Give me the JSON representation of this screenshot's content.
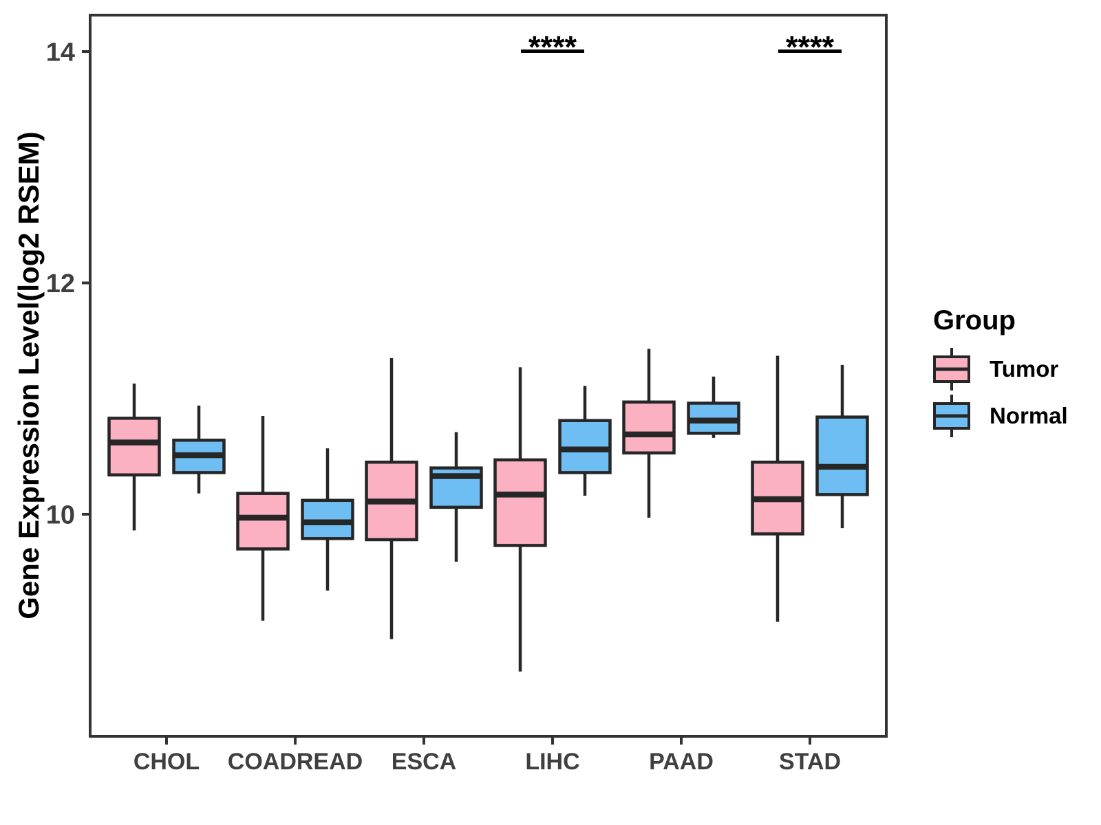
{
  "chart_data": {
    "type": "boxplot",
    "title": "",
    "xlabel": "",
    "ylabel": "Gene Expression Level(log2 RSEM)",
    "categories": [
      "CHOL",
      "COADREAD",
      "ESCA",
      "LIHC",
      "PAAD",
      "STAD"
    ],
    "groups": [
      "Tumor",
      "Normal"
    ],
    "ylim": [
      8.08,
      14.315
    ],
    "yticks": [
      10,
      12,
      14
    ],
    "grid": false,
    "legend_position": "right",
    "series": [
      {
        "name": "Tumor",
        "color": "#FBB1C2",
        "boxes": [
          {
            "category": "CHOL",
            "low": 9.86,
            "q1": 10.34,
            "median": 10.62,
            "q3": 10.83,
            "high": 11.13
          },
          {
            "category": "COADREAD",
            "low": 9.08,
            "q1": 9.7,
            "median": 9.97,
            "q3": 10.18,
            "high": 10.85
          },
          {
            "category": "ESCA",
            "low": 8.92,
            "q1": 9.78,
            "median": 10.11,
            "q3": 10.45,
            "high": 11.35
          },
          {
            "category": "LIHC",
            "low": 8.64,
            "q1": 9.73,
            "median": 10.17,
            "q3": 10.47,
            "high": 11.27
          },
          {
            "category": "PAAD",
            "low": 9.97,
            "q1": 10.53,
            "median": 10.69,
            "q3": 10.97,
            "high": 11.43
          },
          {
            "category": "STAD",
            "low": 9.07,
            "q1": 9.83,
            "median": 10.13,
            "q3": 10.45,
            "high": 11.37
          }
        ]
      },
      {
        "name": "Normal",
        "color": "#6FBEF3",
        "boxes": [
          {
            "category": "CHOL",
            "low": 10.18,
            "q1": 10.36,
            "median": 10.51,
            "q3": 10.64,
            "high": 10.94
          },
          {
            "category": "COADREAD",
            "low": 9.34,
            "q1": 9.79,
            "median": 9.93,
            "q3": 10.12,
            "high": 10.57
          },
          {
            "category": "ESCA",
            "low": 9.59,
            "q1": 10.06,
            "median": 10.33,
            "q3": 10.4,
            "high": 10.71
          },
          {
            "category": "LIHC",
            "low": 10.16,
            "q1": 10.36,
            "median": 10.56,
            "q3": 10.81,
            "high": 11.11
          },
          {
            "category": "PAAD",
            "low": 10.66,
            "q1": 10.7,
            "median": 10.81,
            "q3": 10.96,
            "high": 11.19
          },
          {
            "category": "STAD",
            "low": 9.88,
            "q1": 10.17,
            "median": 10.41,
            "q3": 10.84,
            "high": 11.29
          }
        ]
      }
    ],
    "significance": [
      {
        "category": "LIHC",
        "label": "****"
      },
      {
        "category": "STAD",
        "label": "****"
      }
    ]
  },
  "legend": {
    "title": "Group",
    "items": [
      {
        "label": "Tumor",
        "color": "#FBB1C2"
      },
      {
        "label": "Normal",
        "color": "#6FBEF3"
      }
    ]
  },
  "styles": {
    "box_stroke": "#262626",
    "panel_border": "#333333",
    "tick_color": "#333333",
    "axis_text": "#3F3F3F",
    "significance_color": "#000000"
  }
}
